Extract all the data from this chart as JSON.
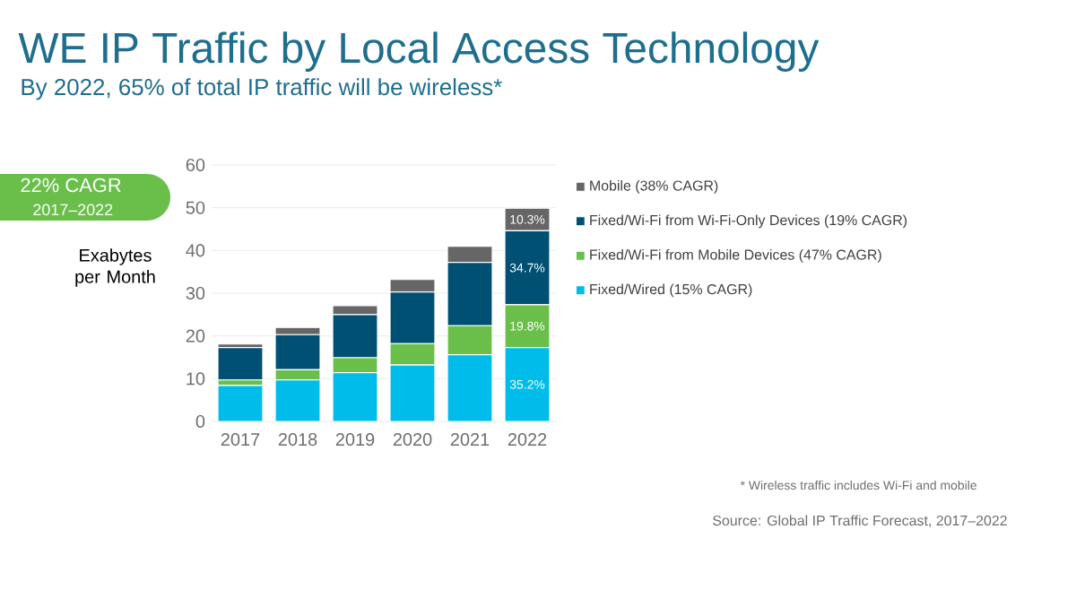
{
  "chart_data": {
    "type": "bar",
    "stacked": true,
    "title": "WE IP Traffic by Local Access Technology",
    "subtitle": "By 2022, 65% of total IP traffic will be wireless*",
    "ylabel": "Exabytes per Month",
    "categories": [
      "2017",
      "2018",
      "2019",
      "2020",
      "2021",
      "2022"
    ],
    "series": [
      {
        "name": "Fixed/Wired (15% CAGR)",
        "color": "#00bceb",
        "values": [
          8.4,
          9.7,
          11.4,
          13.2,
          15.6,
          17.3
        ]
      },
      {
        "name": "Fixed/Wi-Fi from Mobile Devices (47% CAGR)",
        "color": "#6abf4b",
        "values": [
          1.3,
          2.4,
          3.5,
          5.0,
          6.8,
          10.0
        ]
      },
      {
        "name": "Fixed/Wi-Fi from Wi-Fi-Only Devices (19% CAGR)",
        "color": "#005073",
        "values": [
          7.6,
          8.2,
          10.1,
          12.1,
          14.8,
          17.3
        ]
      },
      {
        "name": "Mobile (38% CAGR)",
        "color": "#666666",
        "values": [
          0.8,
          1.7,
          2.1,
          2.9,
          3.8,
          5.3
        ]
      }
    ],
    "ylim": [
      0,
      60
    ],
    "yticks": [
      0,
      10,
      20,
      30,
      40,
      50,
      60
    ],
    "grid": "y",
    "legend": "right",
    "annotations": [
      "22% CAGR",
      "2017–2022",
      "* Wireless traffic includes Wi-Fi and mobile",
      "Source: Global IP Traffic Forecast, 2017–2022",
      "35.2%",
      "19.8%",
      "34.7%",
      "10.3%"
    ]
  }
}
